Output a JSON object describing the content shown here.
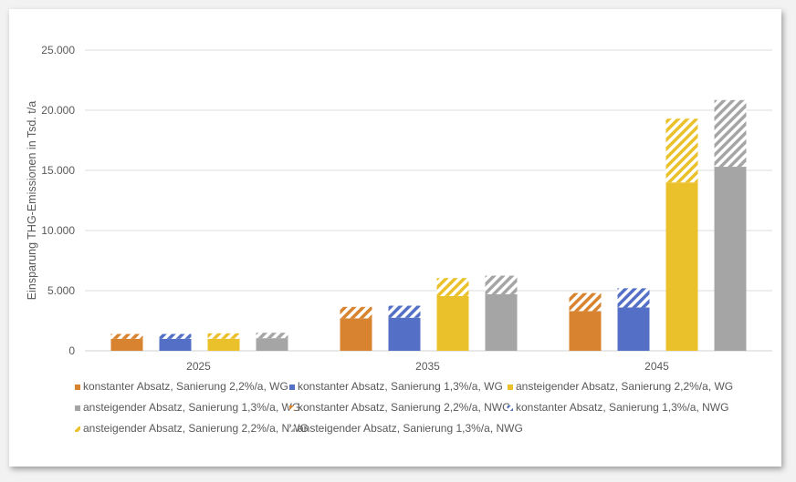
{
  "chart_data": {
    "type": "bar",
    "stacked": true,
    "title": "",
    "xlabel": "",
    "ylabel": "Einsparung THG-Emissionen in Tsd. t/a",
    "ylim": [
      0,
      25000
    ],
    "yticks": [
      0,
      5000,
      10000,
      15000,
      20000,
      25000
    ],
    "ytick_labels": [
      "0",
      "5.000",
      "10.000",
      "15.000",
      "20.000",
      "25.000"
    ],
    "grid": true,
    "legend_position": "bottom",
    "categories": [
      "2025",
      "2035",
      "2045"
    ],
    "groups": [
      {
        "scenario": "konstanter Absatz, Sanierung 2,2%/a",
        "color": "#d8832f",
        "series": [
          {
            "name": "konstanter Absatz, Sanierung 2,2%/a, WG",
            "pattern": "solid",
            "values": [
              1000,
              2700,
              3300
            ]
          },
          {
            "name": "konstanter Absatz, Sanierung 2,2%/a, NWG",
            "pattern": "hatched",
            "values": [
              400,
              950,
              1500
            ]
          }
        ]
      },
      {
        "scenario": "konstanter Absatz, Sanierung 1,3%/a",
        "color": "#5470c6",
        "series": [
          {
            "name": "konstanter Absatz, Sanierung 1,3%/a, WG",
            "pattern": "solid",
            "values": [
              1000,
              2750,
              3600
            ]
          },
          {
            "name": "konstanter Absatz, Sanierung 1,3%/a, NWG",
            "pattern": "hatched",
            "values": [
              400,
              1000,
              1600
            ]
          }
        ]
      },
      {
        "scenario": "ansteigender Absatz, Sanierung 2,2%/a",
        "color": "#ebc12b",
        "series": [
          {
            "name": "ansteigender Absatz, Sanierung 2,2%/a, WG",
            "pattern": "solid",
            "values": [
              1000,
              4550,
              14000
            ]
          },
          {
            "name": "ansteigender Absatz, Sanierung 2,2%/a, NWG",
            "pattern": "hatched",
            "values": [
              450,
              1500,
              5300
            ]
          }
        ]
      },
      {
        "scenario": "ansteigender Absatz, Sanierung 1,3%/a",
        "color": "#a5a5a5",
        "series": [
          {
            "name": "ansteigender Absatz, Sanierung 1,3%/a, WG",
            "pattern": "solid",
            "values": [
              1050,
              4700,
              15300
            ]
          },
          {
            "name": "ansteigender Absatz, Sanierung 1,3%/a, NWG",
            "pattern": "hatched",
            "values": [
              450,
              1550,
              5550
            ]
          }
        ]
      }
    ],
    "legend": [
      {
        "label": "konstanter Absatz, Sanierung 2,2%/a, WG",
        "color": "#d8832f",
        "pattern": "solid"
      },
      {
        "label": "konstanter Absatz, Sanierung 1,3%/a, WG",
        "color": "#5470c6",
        "pattern": "solid"
      },
      {
        "label": "ansteigender Absatz, Sanierung 2,2%/a, WG",
        "color": "#ebc12b",
        "pattern": "solid"
      },
      {
        "label": "ansteigender Absatz, Sanierung 1,3%/a, WG",
        "color": "#a5a5a5",
        "pattern": "solid"
      },
      {
        "label": "konstanter Absatz, Sanierung 2,2%/a, NWG",
        "color": "#d8832f",
        "pattern": "hatched"
      },
      {
        "label": "konstanter Absatz, Sanierung 1,3%/a, NWG",
        "color": "#5470c6",
        "pattern": "hatched"
      },
      {
        "label": "ansteigender Absatz, Sanierung 2,2%/a, NWG",
        "color": "#ebc12b",
        "pattern": "hatched"
      },
      {
        "label": "ansteigender Absatz, Sanierung 1,3%/a, NWG",
        "color": "#a5a5a5",
        "pattern": "hatched"
      }
    ]
  }
}
